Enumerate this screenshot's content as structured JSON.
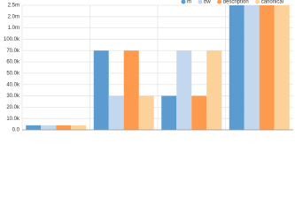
{
  "chart_data": {
    "type": "bar",
    "categories": [
      null,
      null,
      null,
      null
    ],
    "series": [
      {
        "name": "m",
        "color": "#5b9bd0",
        "values": [
          4000,
          70000,
          30000,
          2500000
        ]
      },
      {
        "name": "bw",
        "color": "#c3d7ee",
        "values": [
          4000,
          30000,
          70000,
          2500000
        ]
      },
      {
        "name": "description",
        "color": "#fd9a4e",
        "values": [
          4000,
          70000,
          30000,
          2500000
        ]
      },
      {
        "name": "canonical",
        "color": "#fdd19a",
        "values": [
          4000,
          30000,
          70000,
          2500000
        ]
      }
    ],
    "ylim": [
      0,
      2500000
    ],
    "y_scale": "piecewise",
    "yticks": [
      {
        "value": 0,
        "label": "0.0"
      },
      {
        "value": 10000,
        "label": "10.0k"
      },
      {
        "value": 20000,
        "label": "20.0k"
      },
      {
        "value": 30000,
        "label": "30.0k"
      },
      {
        "value": 40000,
        "label": "40.0k"
      },
      {
        "value": 50000,
        "label": "50.0k"
      },
      {
        "value": 60000,
        "label": "60.0k"
      },
      {
        "value": 70000,
        "label": "70.0k"
      },
      {
        "value": 100000,
        "label": "100.0k"
      },
      {
        "value": 1000000,
        "label": "1.0m"
      },
      {
        "value": 2000000,
        "label": "2.0m"
      },
      {
        "value": 2500000,
        "label": "2.5m"
      }
    ],
    "grid": true
  }
}
